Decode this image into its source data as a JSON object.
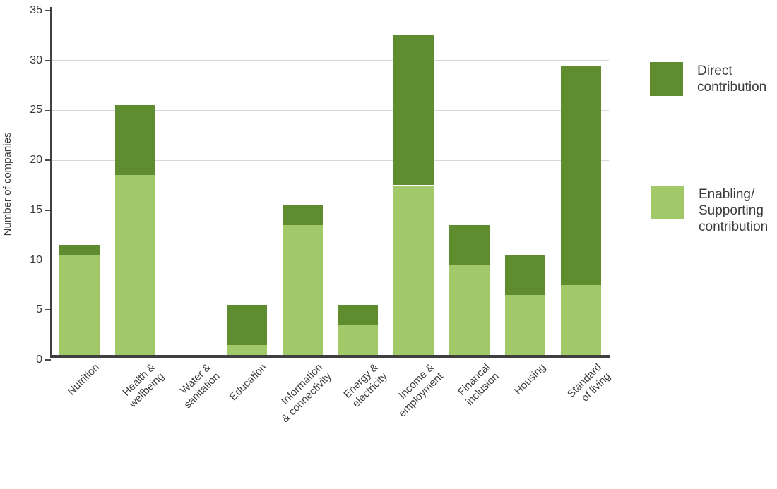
{
  "chart_data": {
    "type": "bar",
    "stacked": true,
    "title": "",
    "xlabel": "",
    "ylabel": "Number of companies",
    "ylim": [
      0,
      35
    ],
    "yticks": [
      0,
      5,
      10,
      15,
      20,
      25,
      30,
      35
    ],
    "grid": "horizontal",
    "legend_position": "right",
    "categories": [
      "Nutrition",
      "Health &\nwellbeing",
      "Water &\nsanitation",
      "Education",
      "Information\n& connectivity",
      "Energy &\nelectricity",
      "Income &\nemployment",
      "Financal\ninclusion",
      "Housing",
      "Standard\nof living"
    ],
    "series": [
      {
        "name": "Direct contribution",
        "legend_label": "Direct\ncontribution",
        "color": "#5e8c2f",
        "values": [
          1,
          7,
          0,
          4,
          2,
          2,
          15,
          4,
          4,
          22
        ]
      },
      {
        "name": "Enabling/Supporting contribution",
        "legend_label": "Enabling/\nSupporting\ncontribution",
        "color": "#a1c969",
        "values": [
          10.5,
          18.5,
          0,
          1.5,
          13.5,
          3.5,
          17.5,
          9.5,
          6.5,
          7.5
        ]
      }
    ],
    "totals": [
      11.5,
      25.5,
      0,
      5.5,
      15.5,
      5.5,
      32.5,
      13.5,
      10.5,
      29.5
    ]
  },
  "colors": {
    "axis": "#3f3f3f",
    "gridline": "#d8d8d8",
    "text": "#3d3d3d"
  }
}
